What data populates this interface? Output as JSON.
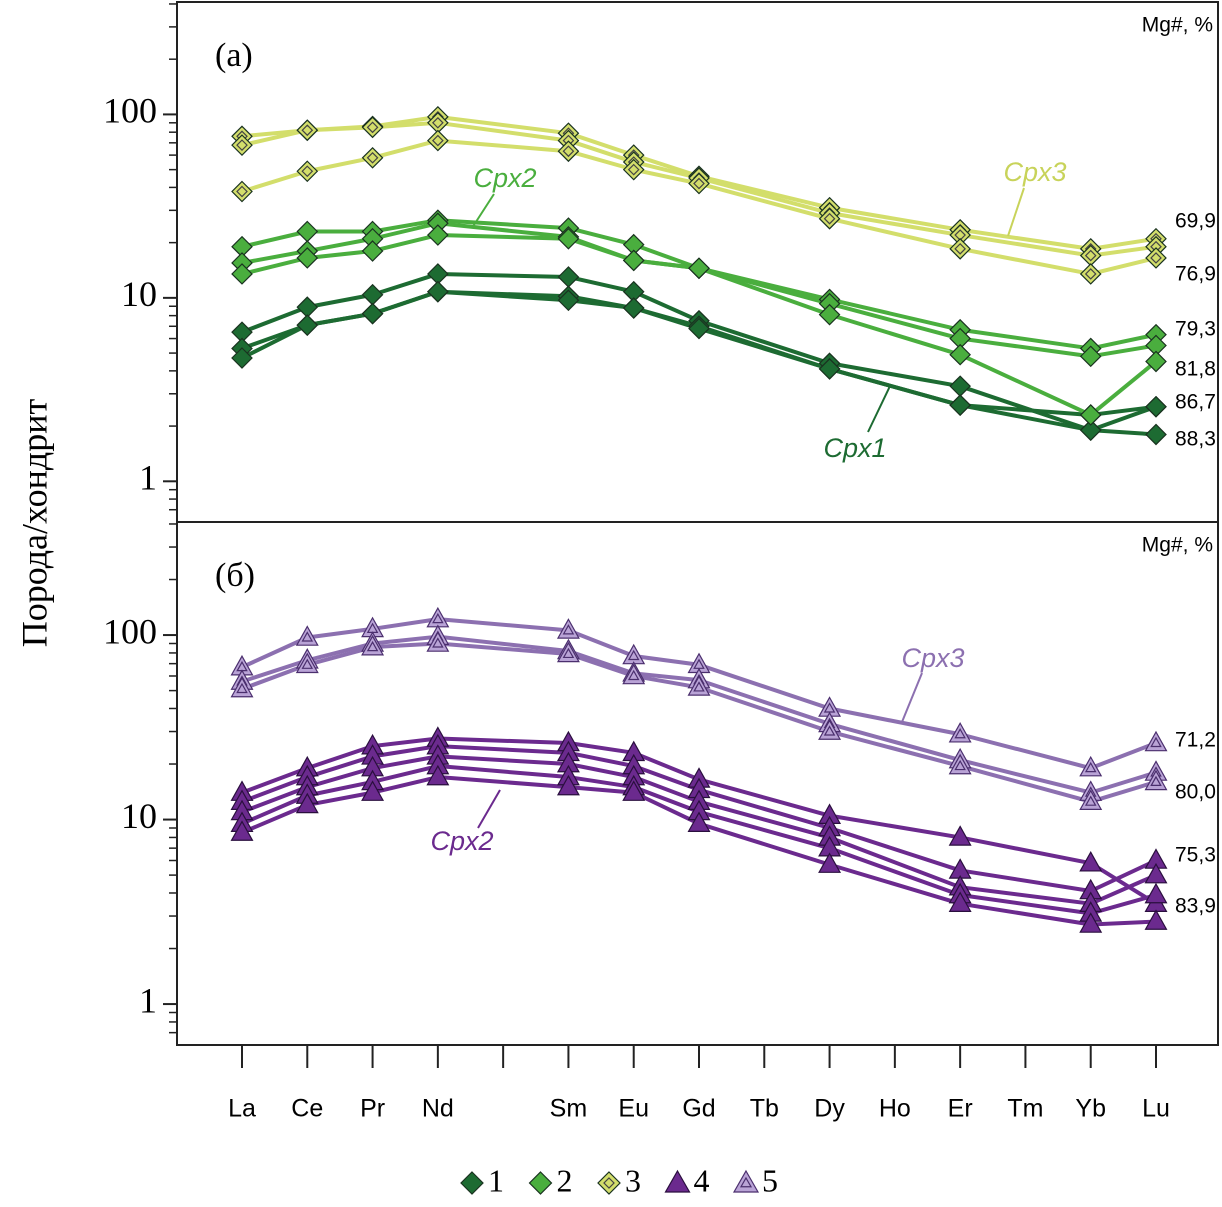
{
  "chart_data": [
    {
      "type": "line",
      "panel_label": "(а)",
      "annotation": "Mg#, %",
      "y_label": "Порода/хондрит",
      "log_y": true,
      "ylim": [
        0.6,
        410
      ],
      "yticks": [
        1,
        10,
        100
      ],
      "yminor_ticks": [
        0.7,
        0.8,
        0.9,
        2,
        3,
        4,
        5,
        6,
        7,
        8,
        9,
        20,
        30,
        40,
        50,
        60,
        70,
        80,
        90,
        200,
        300,
        400
      ],
      "series": [
        {
          "name": "1",
          "color": "#1d6b32",
          "marker": "diamond",
          "lines": [
            [
              6.5,
              8.9,
              10.4,
              13.5,
              null,
              13.0,
              10.8,
              7.5,
              null,
              4.4,
              null,
              3.3,
              null,
              1.9,
              2.55
            ],
            [
              5.3,
              7.1,
              8.2,
              10.8,
              null,
              10.2,
              8.8,
              7.0,
              null,
              4.1,
              null,
              2.6,
              null,
              2.3,
              2.55
            ],
            [
              4.7,
              7.1,
              8.2,
              10.8,
              null,
              9.7,
              8.8,
              6.8,
              null,
              4.1,
              null,
              2.6,
              null,
              1.9,
              1.8
            ]
          ]
        },
        {
          "name": "2",
          "color": "#4aae3e",
          "marker": "diamond",
          "lines": [
            [
              19,
              23,
              23,
              26.5,
              null,
              24,
              19.5,
              14.5,
              null,
              9.8,
              null,
              6.7,
              null,
              5.3,
              6.3
            ],
            [
              15.5,
              18,
              21,
              25.5,
              null,
              21.5,
              16,
              14.5,
              null,
              9.3,
              null,
              6.0,
              null,
              4.8,
              5.5
            ],
            [
              13.5,
              16.5,
              18,
              22,
              null,
              21,
              16,
              14.5,
              null,
              8.1,
              null,
              4.9,
              null,
              2.3,
              4.5
            ]
          ]
        },
        {
          "name": "3",
          "color": "#d3de6b",
          "marker": "diamond-open",
          "lines": [
            [
              76,
              82,
              86,
              97,
              null,
              79,
              60,
              46,
              null,
              31,
              null,
              23.5,
              null,
              18.5,
              21
            ],
            [
              68,
              82,
              85,
              90,
              null,
              72,
              55,
              45,
              null,
              29,
              null,
              22,
              null,
              17,
              19
            ],
            [
              38,
              49,
              58,
              72,
              null,
              63,
              50,
              42,
              null,
              27,
              null,
              18.5,
              null,
              13.5,
              16.5
            ]
          ]
        }
      ],
      "curve_labels": [
        {
          "text": "Cpx2",
          "color": "#4aae3e"
        },
        {
          "text": "Cpx3",
          "color": "#c8d35a"
        },
        {
          "text": "Cpx1",
          "color": "#1d6b32"
        }
      ],
      "mg_labels": [
        "69,9",
        "76,9",
        "79,3",
        "81,8",
        "86,7",
        "88,3"
      ]
    },
    {
      "type": "line",
      "panel_label": "(б)",
      "annotation": "Mg#, %",
      "log_y": true,
      "ylim": [
        0.6,
        410
      ],
      "yticks": [
        1,
        10,
        100
      ],
      "yminor_ticks": [
        0.7,
        0.8,
        0.9,
        2,
        3,
        4,
        5,
        6,
        7,
        8,
        9,
        20,
        30,
        40,
        50,
        60,
        70,
        80,
        90,
        200,
        300,
        400
      ],
      "categories": [
        "La",
        "Ce",
        "Pr",
        "Nd",
        null,
        "Sm",
        "Eu",
        "Gd",
        "Tb",
        "Dy",
        "Ho",
        "Er",
        "Tm",
        "Yb",
        "Lu"
      ],
      "series": [
        {
          "name": "4",
          "color": "#6b2a8e",
          "marker": "triangle",
          "lines": [
            [
              14,
              19,
              25,
              27.5,
              null,
              26,
              23,
              16.5,
              null,
              10.5,
              null,
              8,
              null,
              5.8,
              3.5
            ],
            [
              12.5,
              17,
              22,
              25,
              null,
              23,
              19.5,
              14.5,
              null,
              9,
              null,
              5.3,
              null,
              4.1,
              6.0
            ],
            [
              11,
              15,
              19,
              22,
              null,
              20,
              17,
              12.5,
              null,
              8,
              null,
              4.3,
              null,
              3.5,
              5.0
            ],
            [
              9.5,
              13.5,
              16,
              19.5,
              null,
              17,
              15,
              11,
              null,
              7,
              null,
              3.9,
              null,
              3.1,
              3.9
            ],
            [
              8.5,
              12,
              14,
              17,
              null,
              15,
              14,
              9.5,
              null,
              5.7,
              null,
              3.5,
              null,
              2.7,
              2.8
            ]
          ]
        },
        {
          "name": "5",
          "color": "#8c70b0",
          "marker": "triangle-open",
          "lines": [
            [
              67,
              97,
              108,
              122,
              null,
              106,
              77,
              69,
              null,
              40,
              null,
              29,
              null,
              19,
              26
            ],
            [
              56,
              73,
              90,
              98,
              null,
              82,
              62,
              57,
              null,
              33,
              null,
              21,
              null,
              14,
              18
            ],
            [
              51,
              69,
              86,
              90,
              null,
              79,
              60,
              52,
              null,
              30,
              null,
              19.5,
              null,
              12.5,
              16
            ]
          ]
        }
      ],
      "curve_labels": [
        {
          "text": "Cpx3",
          "color": "#8c70b0"
        },
        {
          "text": "Cpx2",
          "color": "#6b2a8e"
        }
      ],
      "mg_labels": [
        "71,2",
        "80,0",
        "75,3",
        "83,9"
      ],
      "legend": "bottom"
    }
  ]
}
